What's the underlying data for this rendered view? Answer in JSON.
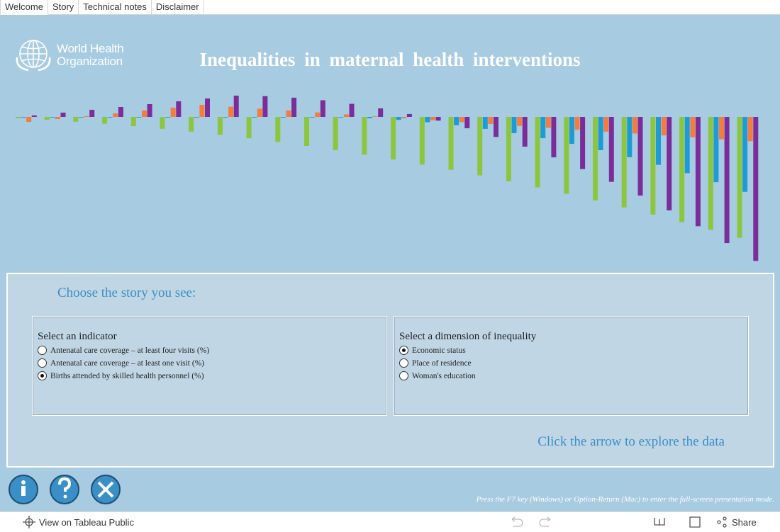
{
  "tabs": [
    "Welcome",
    "Story",
    "Technical notes",
    "Disclaimer"
  ],
  "logo": {
    "line1": "World Health",
    "line2": "Organization"
  },
  "title": "Inequalities in maternal health interventions",
  "panel": {
    "prompt": "Choose the story you see:",
    "indicator": {
      "label": "Select an indicator",
      "options": [
        "Antenatal care coverage – at least four visits (%)",
        "Antenatal care coverage – at least one visit (%)",
        "Births attended by skilled health personnel (%)"
      ],
      "selected": 2
    },
    "dimension": {
      "label": "Select a dimension of inequality",
      "options": [
        "Economic status",
        "Place of residence",
        "Woman's education"
      ],
      "selected": 0
    },
    "cta": "Click the arrow to explore the data"
  },
  "hint": "Press the F7 key (Windows) or Option-Return (Mac) to enter the full-screen presentation mode.",
  "toolbar": {
    "view": "View on Tableau Public",
    "share": "Share"
  }
}
